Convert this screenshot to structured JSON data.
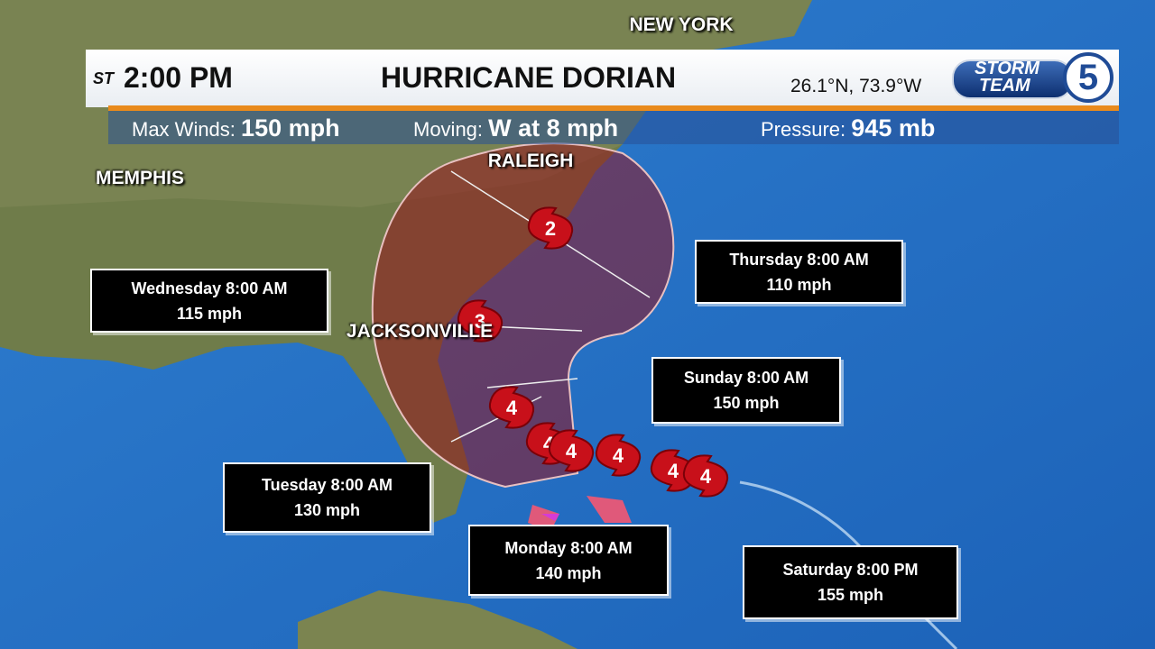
{
  "header": {
    "time_prefix": "ST",
    "time": "2:00 PM",
    "title": "HURRICANE DORIAN",
    "position": "26.1°N, 73.9°W",
    "logo": {
      "line1": "STORM",
      "line2": "TEAM",
      "channel": "5"
    }
  },
  "stats": [
    {
      "label": "Max Winds:",
      "value": "150 mph"
    },
    {
      "label": "Moving:",
      "value": "W at 8 mph"
    },
    {
      "label": "Pressure:",
      "value": "945 mb"
    }
  ],
  "cities": [
    "NEW YORK",
    "RALEIGH",
    "MEMPHIS",
    "JACKSONVILLE"
  ],
  "track_markers": [
    "2",
    "3",
    "4",
    "4",
    "4",
    "4",
    "4",
    "4"
  ],
  "forecasts": [
    {
      "time": "Wednesday 8:00 AM",
      "wind": "115 mph"
    },
    {
      "time": "Thursday 8:00 AM",
      "wind": "110 mph"
    },
    {
      "time": "Sunday 8:00 AM",
      "wind": "150 mph"
    },
    {
      "time": "Tuesday 8:00 AM",
      "wind": "130 mph"
    },
    {
      "time": "Monday 8:00 AM",
      "wind": "140 mph"
    },
    {
      "time": "Saturday 8:00 PM",
      "wind": "155 mph"
    }
  ]
}
